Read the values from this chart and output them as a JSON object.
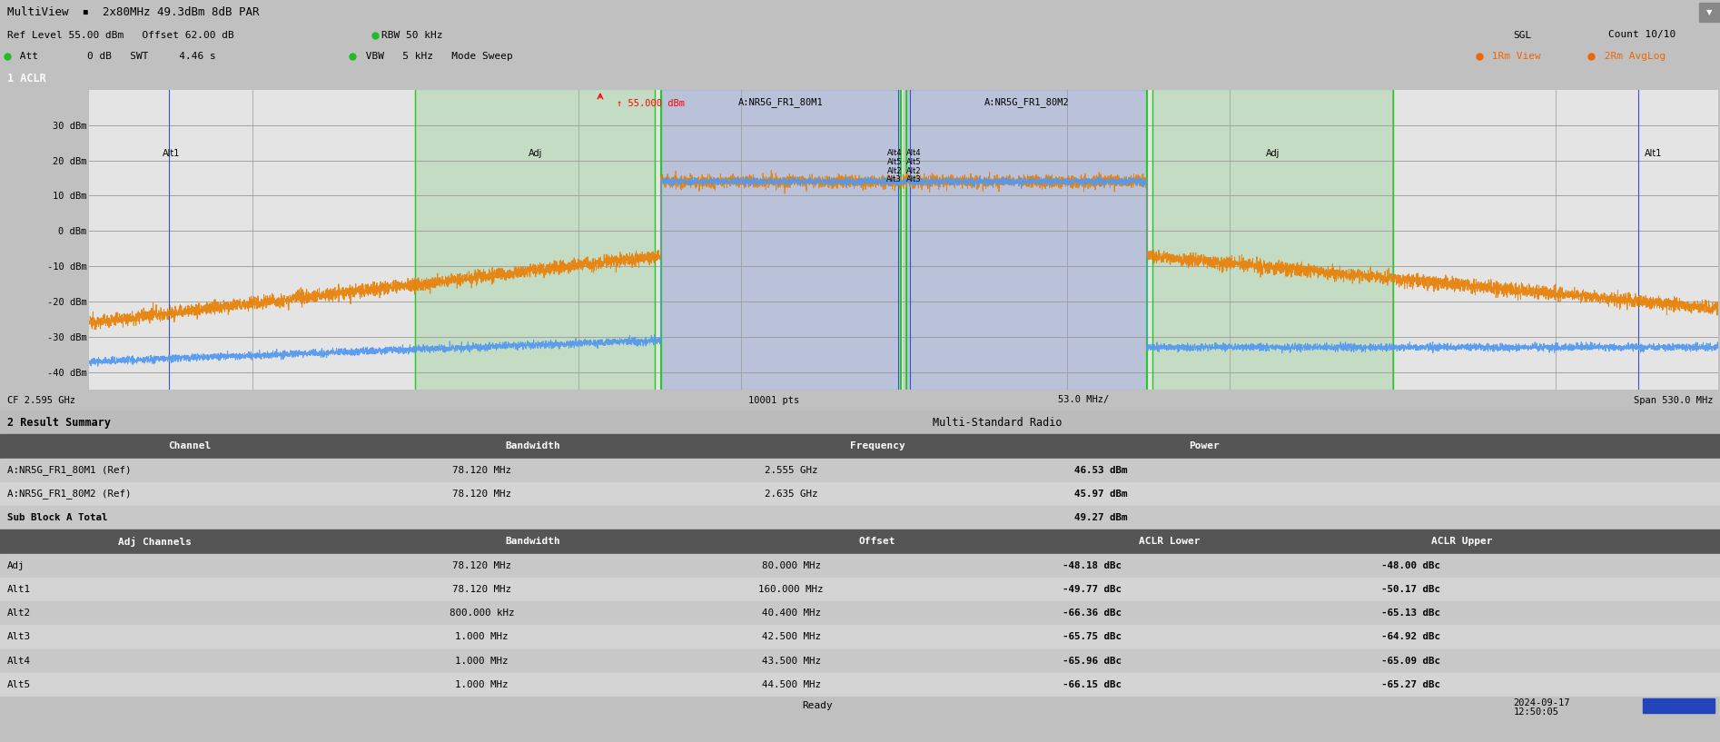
{
  "title_bar": "MultiView  ▪  2x80MHz 49.3dBm 8dB PAR",
  "ref_level_text": "Ref Level 55.00 dBm   Offset 62.00 dB ● RBW 50 kHz",
  "att_text": "● Att        0 dB   SWT     4.46 s ● VBW   5 kHz   Mode Sweep",
  "panel_title": "1 ACLR",
  "sgl_text": "SGL",
  "count_text": "Count 10/10",
  "view_text": "1Rm View  2Rm AvgLog",
  "bottom_left": "CF 2.595 GHz",
  "bottom_mid": "10001 pts",
  "bottom_mid2": "53.0 MHz/",
  "bottom_right": "Span 530.0 MHz",
  "channel_label1": "A:NR5G_FR1_80M1",
  "channel_label2": "A:NR5G_FR1_80M2",
  "marker_text": "↑ 55.000 dBm",
  "ylim": [
    -45,
    40
  ],
  "yticks": [
    30,
    20,
    10,
    0,
    -10,
    -20,
    -30,
    -40
  ],
  "ytick_labels": [
    "30 dBm",
    "20 dBm",
    "10 dBm",
    "0 dBm",
    "-10 dBm",
    "-20 dBm",
    "-30 dBm",
    "-40 dBm"
  ],
  "result_text": "2 Result Summary",
  "multi_standard": "Multi-Standard Radio",
  "row1": [
    "A:NR5G_FR1_80M1 (Ref)",
    "78.120 MHz",
    "2.555 GHz",
    "46.53 dBm"
  ],
  "row2": [
    "A:NR5G_FR1_80M2 (Ref)",
    "78.120 MHz",
    "2.635 GHz",
    "45.97 dBm"
  ],
  "row3": [
    "Sub Block A Total",
    "",
    "",
    "49.27 dBm"
  ],
  "adj_rows": [
    [
      "Adj",
      "78.120 MHz",
      "80.000 MHz",
      "-48.18 dBc",
      "-48.00 dBc"
    ],
    [
      "Alt1",
      "78.120 MHz",
      "160.000 MHz",
      "-49.77 dBc",
      "-50.17 dBc"
    ],
    [
      "Alt2",
      "800.000 kHz",
      "40.400 MHz",
      "-66.36 dBc",
      "-65.13 dBc"
    ],
    [
      "Alt3",
      "1.000 MHz",
      "42.500 MHz",
      "-65.75 dBc",
      "-64.92 dBc"
    ],
    [
      "Alt4",
      "1.000 MHz",
      "43.500 MHz",
      "-65.96 dBc",
      "-65.09 dBc"
    ],
    [
      "Alt5",
      "1.000 MHz",
      "44.500 MHz",
      "-66.15 dBc",
      "-65.27 dBc"
    ]
  ],
  "orange_color": "#e8820a",
  "blue_signal_color": "#5599ee",
  "panel_header_bg": "#1a3a8a",
  "green_line_color": "#22cc22",
  "dark_blue_line": "#3355cc"
}
